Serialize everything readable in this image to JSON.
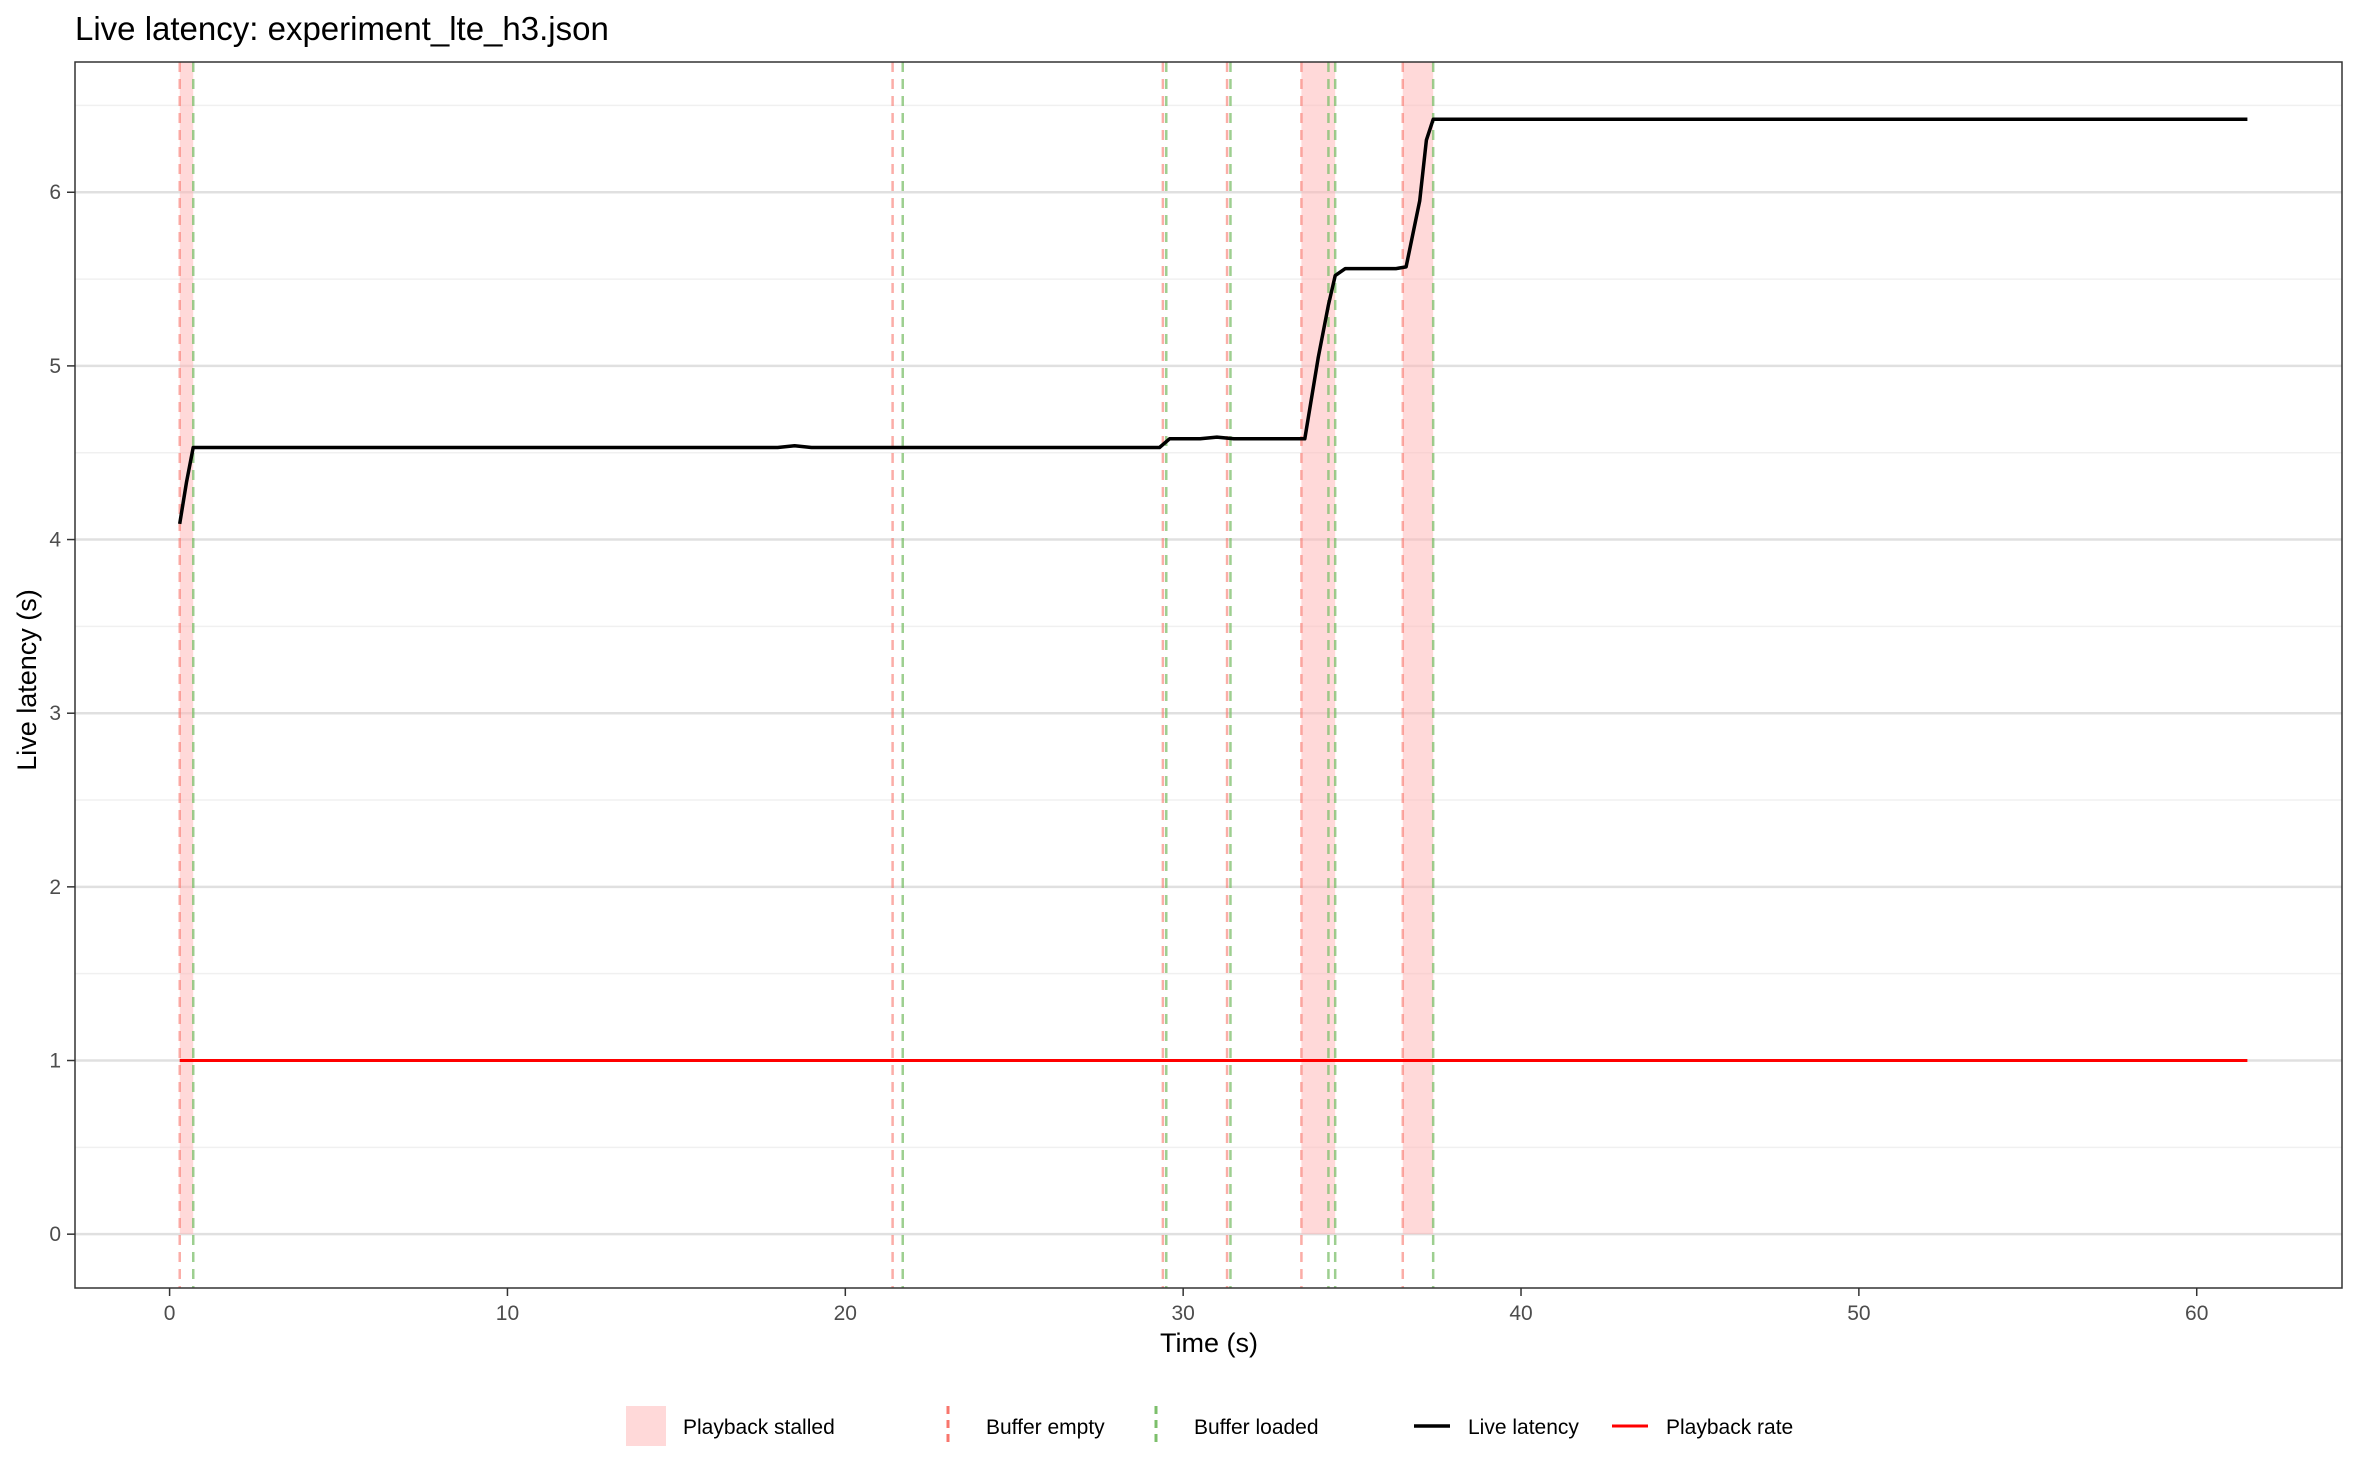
{
  "chart_data": {
    "type": "line",
    "title": "Live latency: experiment_lte_h3.json",
    "xlabel": "Time (s)",
    "ylabel": "Live latency (s)",
    "xlim": [
      -2.8,
      64.3
    ],
    "ylim": [
      -0.31,
      6.75
    ],
    "x_ticks": [
      0,
      10,
      20,
      30,
      40,
      50,
      60
    ],
    "y_ticks": [
      0,
      1,
      2,
      3,
      4,
      5,
      6
    ],
    "grid": "horizontal major and minor lines",
    "legend_position": "bottom",
    "legend": [
      {
        "key": "stalled",
        "label": "Playback stalled"
      },
      {
        "key": "empty",
        "label": "Buffer empty"
      },
      {
        "key": "loaded",
        "label": "Buffer loaded"
      },
      {
        "key": "latency",
        "label": "Live latency"
      },
      {
        "key": "rate",
        "label": "Playback rate"
      }
    ],
    "colors": {
      "latency": "#000000",
      "rate": "#ff0000",
      "stall_fill": "#ffb3b3",
      "buffer_empty": "#f8766d",
      "buffer_loaded": "#7cbf6b"
    },
    "stall_intervals": [
      [
        0.3,
        0.7
      ],
      [
        33.5,
        34.5
      ],
      [
        36.5,
        37.4
      ]
    ],
    "buffer_empty_times": [
      0.3,
      21.4,
      29.4,
      31.3,
      33.5,
      36.5
    ],
    "buffer_loaded_times": [
      0.7,
      21.7,
      29.5,
      31.4,
      34.3,
      34.5,
      37.4
    ],
    "series": [
      {
        "name": "Live latency",
        "x": [
          0.3,
          0.5,
          0.7,
          2,
          4,
          6,
          8,
          10,
          12,
          14,
          16,
          18,
          18.5,
          19,
          20,
          22,
          24,
          26,
          28,
          29.3,
          29.6,
          30,
          30.5,
          31,
          31.5,
          32,
          33,
          33.6,
          34.0,
          34.3,
          34.5,
          34.8,
          35.5,
          36.3,
          36.6,
          37.0,
          37.2,
          37.4,
          38,
          40,
          42,
          44,
          46,
          48,
          50,
          52,
          54,
          56,
          58,
          60,
          61.5
        ],
        "y": [
          4.09,
          4.33,
          4.53,
          4.53,
          4.53,
          4.53,
          4.53,
          4.53,
          4.53,
          4.53,
          4.53,
          4.53,
          4.54,
          4.53,
          4.53,
          4.53,
          4.53,
          4.53,
          4.53,
          4.53,
          4.58,
          4.58,
          4.58,
          4.59,
          4.58,
          4.58,
          4.58,
          4.58,
          5.05,
          5.35,
          5.52,
          5.56,
          5.56,
          5.56,
          5.57,
          5.95,
          6.3,
          6.42,
          6.42,
          6.42,
          6.42,
          6.42,
          6.42,
          6.42,
          6.42,
          6.42,
          6.42,
          6.42,
          6.42,
          6.42,
          6.42
        ]
      },
      {
        "name": "Playback rate",
        "x": [
          0.3,
          61.5
        ],
        "y": [
          1,
          1
        ]
      }
    ]
  }
}
